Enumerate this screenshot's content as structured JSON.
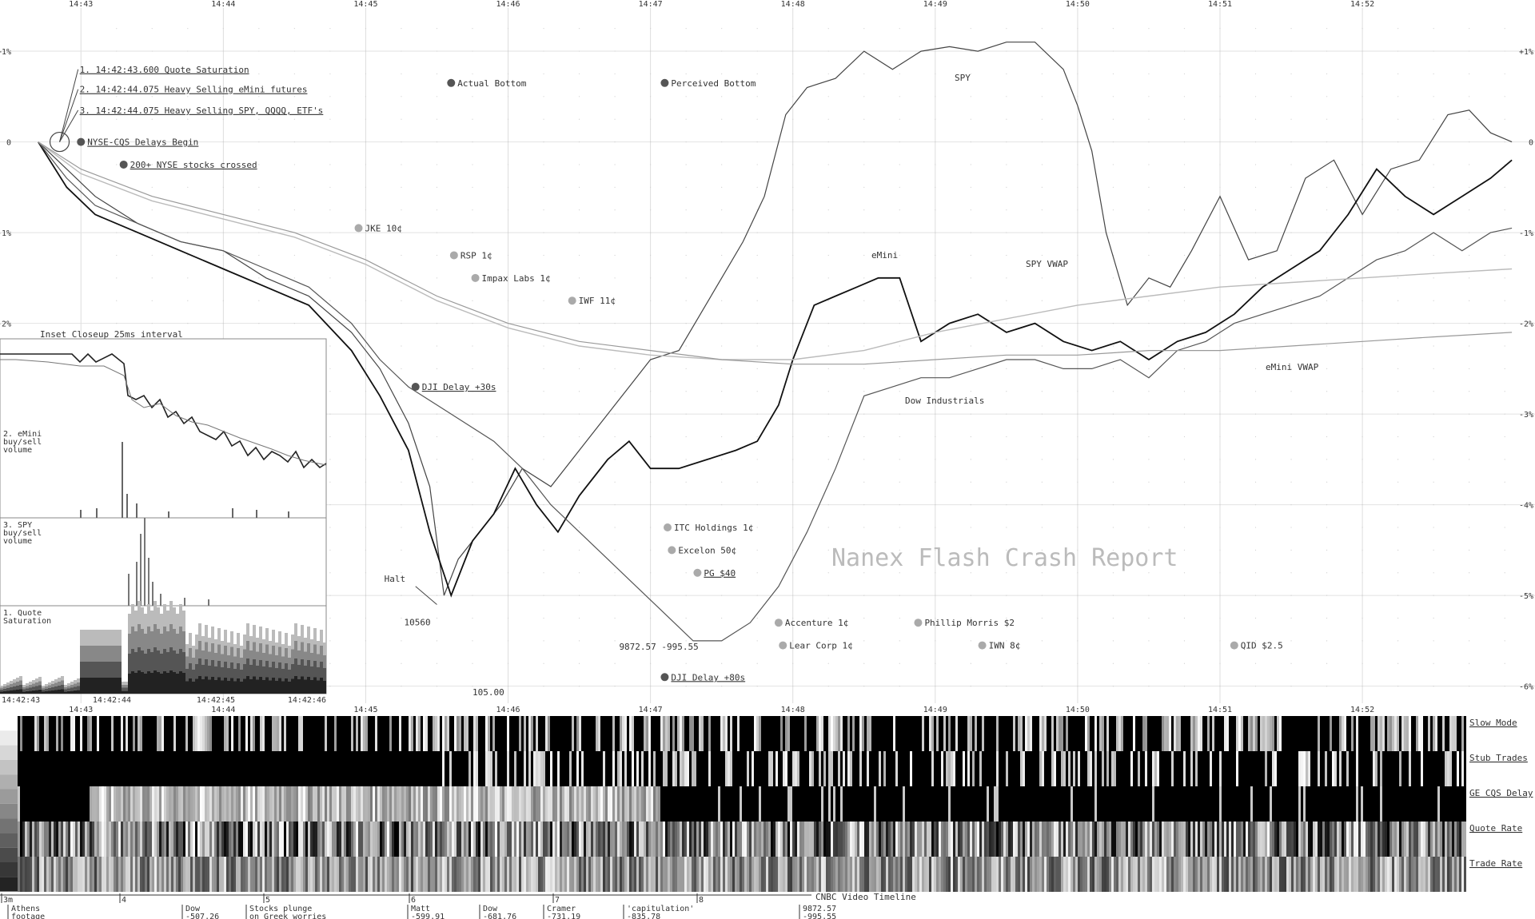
{
  "chart_data": {
    "type": "line",
    "watermark": "Nanex Flash Crash Report",
    "x_ticks": [
      "14:43",
      "14:44",
      "14:45",
      "14:46",
      "14:47",
      "14:48",
      "14:49",
      "14:50",
      "14:51",
      "14:52"
    ],
    "y_ticks": [
      "+1%",
      "0",
      "-1%",
      "-2%",
      "-3%",
      "-4%",
      "-5%",
      "-6%"
    ],
    "y_tick_values": [
      1,
      0,
      -1,
      -2,
      -3,
      -4,
      -5,
      -6
    ],
    "ylim": [
      -6.1,
      1.3
    ],
    "xlim_min": [
      42.6,
      53.1
    ],
    "series_labels": {
      "spy": "SPY",
      "emini": "eMini",
      "spy_vwap": "SPY VWAP",
      "emini_vwap": "eMini VWAP",
      "dow": "Dow Industrials"
    },
    "series": [
      {
        "key": "spy",
        "name": "SPY",
        "color": "#444",
        "x": [
          42.7,
          42.9,
          43.1,
          43.4,
          43.7,
          44.0,
          44.3,
          44.6,
          44.9,
          45.1,
          45.3,
          45.45,
          45.55,
          45.65,
          45.8,
          45.95,
          46.1,
          46.3,
          46.5,
          46.7,
          46.85,
          47.0,
          47.2,
          47.35,
          47.5,
          47.65,
          47.8,
          47.95,
          48.1,
          48.3,
          48.5,
          48.7,
          48.9,
          49.1,
          49.3,
          49.5,
          49.7,
          49.9,
          50.0,
          50.1,
          50.2,
          50.35,
          50.5,
          50.65,
          50.8,
          51.0,
          51.2,
          51.4,
          51.6,
          51.8,
          52.0,
          52.2,
          52.4,
          52.6,
          52.75,
          52.9,
          53.05
        ],
        "y": [
          0,
          -0.3,
          -0.6,
          -0.9,
          -1.1,
          -1.2,
          -1.5,
          -1.7,
          -2.1,
          -2.5,
          -3.1,
          -3.8,
          -5.0,
          -4.6,
          -4.3,
          -4.0,
          -3.6,
          -3.8,
          -3.4,
          -3.0,
          -2.7,
          -2.4,
          -2.3,
          -1.9,
          -1.5,
          -1.1,
          -0.6,
          0.3,
          0.6,
          0.7,
          1.0,
          0.8,
          1.0,
          1.05,
          1.0,
          1.1,
          1.1,
          0.8,
          0.4,
          -0.1,
          -1.0,
          -1.8,
          -1.5,
          -1.6,
          -1.2,
          -0.6,
          -1.3,
          -1.2,
          -0.4,
          -0.2,
          -0.8,
          -0.3,
          -0.2,
          0.3,
          0.35,
          0.1,
          0.0
        ]
      },
      {
        "key": "emini",
        "name": "eMini",
        "color": "#111",
        "x": [
          42.7,
          42.9,
          43.1,
          43.4,
          43.7,
          44.0,
          44.3,
          44.6,
          44.9,
          45.1,
          45.3,
          45.45,
          45.6,
          45.75,
          45.9,
          46.05,
          46.2,
          46.35,
          46.5,
          46.7,
          46.85,
          47.0,
          47.2,
          47.4,
          47.6,
          47.75,
          47.9,
          48.0,
          48.15,
          48.3,
          48.45,
          48.6,
          48.75,
          48.9,
          49.1,
          49.3,
          49.5,
          49.7,
          49.9,
          50.1,
          50.3,
          50.5,
          50.7,
          50.9,
          51.1,
          51.3,
          51.5,
          51.7,
          51.9,
          52.1,
          52.3,
          52.5,
          52.7,
          52.9,
          53.05
        ],
        "y": [
          0,
          -0.5,
          -0.8,
          -1.0,
          -1.2,
          -1.4,
          -1.6,
          -1.8,
          -2.3,
          -2.8,
          -3.4,
          -4.3,
          -5.0,
          -4.4,
          -4.1,
          -3.6,
          -4.0,
          -4.3,
          -3.9,
          -3.5,
          -3.3,
          -3.6,
          -3.6,
          -3.5,
          -3.4,
          -3.3,
          -2.9,
          -2.4,
          -1.8,
          -1.7,
          -1.6,
          -1.5,
          -1.5,
          -2.2,
          -2.0,
          -1.9,
          -2.1,
          -2.0,
          -2.2,
          -2.3,
          -2.2,
          -2.4,
          -2.2,
          -2.1,
          -1.9,
          -1.6,
          -1.4,
          -1.2,
          -0.8,
          -0.3,
          -0.6,
          -0.8,
          -0.6,
          -0.4,
          -0.2
        ]
      },
      {
        "key": "dow",
        "name": "Dow Industrials",
        "color": "#555",
        "x": [
          42.7,
          42.9,
          43.1,
          43.4,
          43.7,
          44.0,
          44.3,
          44.6,
          44.9,
          45.1,
          45.3,
          45.6,
          45.9,
          46.1,
          46.3,
          46.5,
          46.7,
          46.9,
          47.1,
          47.3,
          47.5,
          47.7,
          47.9,
          48.1,
          48.3,
          48.5,
          48.7,
          48.9,
          49.1,
          49.3,
          49.5,
          49.7,
          49.9,
          50.1,
          50.3,
          50.5,
          50.7,
          50.9,
          51.1,
          51.3,
          51.5,
          51.7,
          51.9,
          52.1,
          52.3,
          52.5,
          52.7,
          52.9,
          53.05
        ],
        "y": [
          0,
          -0.4,
          -0.7,
          -0.9,
          -1.1,
          -1.2,
          -1.4,
          -1.6,
          -2.0,
          -2.4,
          -2.7,
          -3.0,
          -3.3,
          -3.6,
          -4.0,
          -4.3,
          -4.6,
          -4.9,
          -5.2,
          -5.5,
          -5.5,
          -5.3,
          -4.9,
          -4.3,
          -3.6,
          -2.8,
          -2.7,
          -2.6,
          -2.6,
          -2.5,
          -2.4,
          -2.4,
          -2.5,
          -2.5,
          -2.4,
          -2.6,
          -2.3,
          -2.2,
          -2.0,
          -1.9,
          -1.8,
          -1.7,
          -1.5,
          -1.3,
          -1.2,
          -1.0,
          -1.2,
          -1.0,
          -0.95
        ]
      },
      {
        "key": "spy_vwap",
        "name": "SPY VWAP",
        "color": "#bbb",
        "x": [
          42.7,
          43.0,
          43.5,
          44.0,
          44.5,
          45.0,
          45.5,
          46.0,
          46.5,
          47.0,
          47.5,
          48.0,
          48.5,
          49.0,
          49.5,
          50.0,
          50.5,
          51.0,
          51.5,
          52.0,
          52.5,
          53.05
        ],
        "y": [
          0,
          -0.35,
          -0.65,
          -0.85,
          -1.05,
          -1.35,
          -1.75,
          -2.05,
          -2.25,
          -2.35,
          -2.4,
          -2.4,
          -2.3,
          -2.1,
          -1.95,
          -1.8,
          -1.7,
          -1.6,
          -1.55,
          -1.5,
          -1.45,
          -1.4
        ]
      },
      {
        "key": "emini_vwap",
        "name": "eMini VWAP",
        "color": "#999",
        "x": [
          42.7,
          43.0,
          43.5,
          44.0,
          44.5,
          45.0,
          45.5,
          46.0,
          46.5,
          47.0,
          47.5,
          48.0,
          48.5,
          49.0,
          49.5,
          50.0,
          50.5,
          51.0,
          51.5,
          52.0,
          52.5,
          53.05
        ],
        "y": [
          0,
          -0.3,
          -0.6,
          -0.8,
          -1.0,
          -1.3,
          -1.7,
          -2.0,
          -2.2,
          -2.3,
          -2.4,
          -2.45,
          -2.45,
          -2.4,
          -2.35,
          -2.35,
          -2.3,
          -2.3,
          -2.25,
          -2.2,
          -2.15,
          -2.1
        ]
      }
    ],
    "markers": [
      {
        "label": "Actual Bottom",
        "x": 45.6,
        "y": 0.65,
        "shade": "dark",
        "underline": false
      },
      {
        "label": "Perceived Bottom",
        "x": 47.1,
        "y": 0.65,
        "shade": "dark",
        "underline": false
      },
      {
        "label": "NYSE-CQS Delays Begin",
        "x": 43.0,
        "y": 0.0,
        "shade": "dark",
        "underline": true
      },
      {
        "label": "200+ NYSE stocks crossed",
        "x": 43.3,
        "y": -0.25,
        "shade": "dark",
        "underline": true
      },
      {
        "label": "JKE 10¢",
        "x": 44.95,
        "y": -0.95,
        "shade": "light",
        "underline": false
      },
      {
        "label": "RSP 1¢",
        "x": 45.62,
        "y": -1.25,
        "shade": "light",
        "underline": false
      },
      {
        "label": "Impax Labs 1¢",
        "x": 45.77,
        "y": -1.5,
        "shade": "light",
        "underline": false
      },
      {
        "label": "IWF 11¢",
        "x": 46.45,
        "y": -1.75,
        "shade": "light",
        "underline": false
      },
      {
        "label": "DJI Delay +30s",
        "x": 45.35,
        "y": -2.7,
        "shade": "dark",
        "underline": true
      },
      {
        "label": "ITC Holdings 1¢",
        "x": 47.12,
        "y": -4.25,
        "shade": "light",
        "underline": false
      },
      {
        "label": "Excelon 50¢",
        "x": 47.15,
        "y": -4.5,
        "shade": "light",
        "underline": false
      },
      {
        "label": "PG $40",
        "x": 47.33,
        "y": -4.75,
        "shade": "light",
        "underline": true
      },
      {
        "label": "Accenture 1¢",
        "x": 47.9,
        "y": -5.3,
        "shade": "light",
        "underline": false
      },
      {
        "label": "Lear Corp 1¢",
        "x": 47.93,
        "y": -5.55,
        "shade": "light",
        "underline": false
      },
      {
        "label": "Phillip Morris $2",
        "x": 48.88,
        "y": -5.3,
        "shade": "light",
        "underline": false
      },
      {
        "label": "IWN 8¢",
        "x": 49.33,
        "y": -5.55,
        "shade": "light",
        "underline": false
      },
      {
        "label": "QID $2.5",
        "x": 51.1,
        "y": -5.55,
        "shade": "light",
        "underline": false
      },
      {
        "label": "DJI Delay +80s",
        "x": 47.1,
        "y": -5.9,
        "shade": "dark",
        "underline": true
      }
    ],
    "notes": [
      {
        "label": "1. 14:42:43.600 Quote Saturation",
        "x": 42.98,
        "y": 0.8
      },
      {
        "label": "2. 14:42:44.075 Heavy Selling eMini futures",
        "x": 42.98,
        "y": 0.58
      },
      {
        "label": "3. 14:42:44.075 Heavy Selling SPY, QQQQ, ETF's",
        "x": 42.98,
        "y": 0.35
      }
    ],
    "text_annotations": [
      {
        "label": "Halt",
        "x": 45.13,
        "y": -4.85
      },
      {
        "label": "10560",
        "x": 45.27,
        "y": -5.33
      },
      {
        "label": "105.00",
        "x": 45.75,
        "y": -6.1
      },
      {
        "label": "9872.57 -995.55",
        "x": 46.78,
        "y": -5.6
      }
    ],
    "inset": {
      "title": "Inset Closeup 25ms interval",
      "panel_labels": [
        "2. eMini buy/sell volume",
        "3. SPY buy/sell volume",
        "1. Quote Saturation"
      ],
      "ticks": [
        "14:42:43",
        "14:42:44",
        "14:42:45",
        "14:42:46"
      ]
    },
    "heatmap": {
      "rows": [
        "Slow Mode",
        "Stub Trades",
        "GE CQS Delay",
        "Quote Rate",
        "Trade Rate"
      ]
    },
    "video_timeline": {
      "title": "CNBC Video Timeline",
      "minutes": [
        "3m",
        "4",
        "5",
        "6",
        "7",
        "8"
      ],
      "events": [
        {
          "l1": "Athens",
          "l2": "footage"
        },
        {
          "l1": "Dow",
          "l2": "-507.26"
        },
        {
          "l1": "Stocks plunge",
          "l2": "on Greek worries"
        },
        {
          "l1": "Matt",
          "l2": "-599.91"
        },
        {
          "l1": "Dow",
          "l2": "-681.76"
        },
        {
          "l1": "Cramer",
          "l2": "-731.19"
        },
        {
          "l1": "'capitulation'",
          "l2": "-835.78"
        },
        {
          "l1": "9872.57",
          "l2": "-995.55"
        }
      ]
    }
  }
}
